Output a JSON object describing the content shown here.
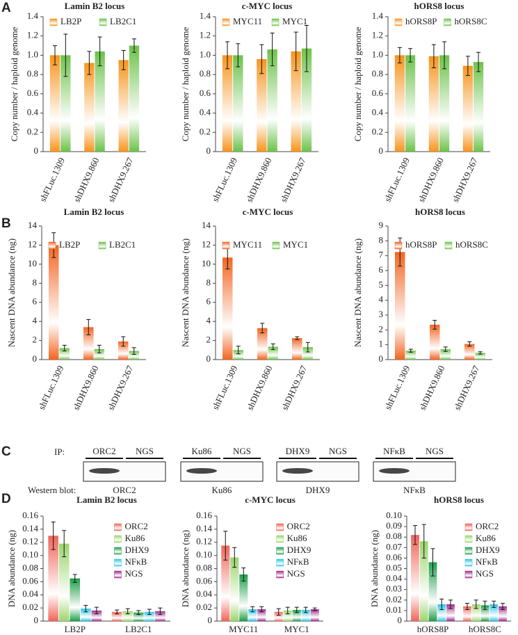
{
  "panel_labels": [
    "A",
    "B",
    "C",
    "D"
  ],
  "chart_data": [
    {
      "type": "bar",
      "title": "Lamin B2 locus",
      "y_label": "Copy number / haploid genome",
      "categories": [
        "shFLuc.1309",
        "shDHX9.860",
        "shDHX9.267"
      ],
      "series": [
        {
          "name": "LB2P",
          "color": "#f7941d",
          "values": [
            1.0,
            0.92,
            0.95
          ],
          "errors": [
            0.1,
            0.12,
            0.1
          ]
        },
        {
          "name": "LB2C1",
          "color": "#6cc24a",
          "values": [
            1.0,
            1.04,
            1.1
          ],
          "errors": [
            0.22,
            0.15,
            0.07
          ]
        }
      ],
      "ylim": [
        0,
        1.4
      ],
      "yticks": [
        0,
        0.2,
        0.4,
        0.6,
        0.8,
        {
          "value": 1,
          "label": "1.0"
        },
        1.2,
        1.4
      ],
      "legend": "top"
    },
    {
      "type": "bar",
      "title": "c-MYC locus",
      "y_label": "Copy number / haploid genome",
      "categories": [
        "shFLuc.1309",
        "shDHX9.860",
        "shDHX9.267"
      ],
      "series": [
        {
          "name": "MYC11",
          "color": "#f7941d",
          "values": [
            1.0,
            0.96,
            1.04
          ],
          "errors": [
            0.14,
            0.15,
            0.2
          ]
        },
        {
          "name": "MYC1",
          "color": "#6cc24a",
          "values": [
            1.0,
            1.06,
            1.07
          ],
          "errors": [
            0.12,
            0.17,
            0.24
          ]
        }
      ],
      "ylim": [
        0,
        1.4
      ],
      "yticks": [
        0,
        0.2,
        0.4,
        0.6,
        0.8,
        {
          "value": 1,
          "label": "1.0"
        },
        1.2,
        1.4
      ],
      "legend": "top"
    },
    {
      "type": "bar",
      "title": "hORS8 locus",
      "y_label": "Copy number / haploid genome",
      "categories": [
        "shFLuc.1309",
        "shDHX9.860",
        "shDHX9.267"
      ],
      "series": [
        {
          "name": "hORS8P",
          "color": "#f7941d",
          "values": [
            1.0,
            0.99,
            0.89
          ],
          "errors": [
            0.08,
            0.12,
            0.1
          ]
        },
        {
          "name": "hORS8C",
          "color": "#6cc24a",
          "values": [
            1.0,
            1.0,
            0.93
          ],
          "errors": [
            0.07,
            0.14,
            0.1
          ]
        }
      ],
      "ylim": [
        0,
        1.4
      ],
      "yticks": [
        0,
        0.2,
        0.4,
        0.6,
        0.8,
        {
          "value": 1,
          "label": "1.0"
        },
        1.2,
        1.4
      ],
      "legend": "top"
    },
    {
      "type": "bar",
      "title": "Lamin B2 locus",
      "y_label": "Nascent DNA abundance (ng)",
      "categories": [
        "shFLuc.1309",
        "shDHX9.860",
        "shDHX9.267"
      ],
      "series": [
        {
          "name": "LB2P",
          "color": "#f26522",
          "values": [
            12,
            3.4,
            1.9
          ],
          "errors": [
            1.3,
            0.8,
            0.5
          ]
        },
        {
          "name": "LB2C1",
          "color": "#6cc24a",
          "values": [
            1.2,
            1.1,
            0.9
          ],
          "errors": [
            0.3,
            0.4,
            0.35
          ]
        }
      ],
      "ylim": [
        0,
        14
      ],
      "yticks": [
        0,
        2,
        4,
        6,
        8,
        10,
        12,
        14
      ],
      "legend": "top"
    },
    {
      "type": "bar",
      "title": "c-MYC locus",
      "y_label": "Nascent DNA abundance (ng)",
      "categories": [
        "shFLuc.1309",
        "shDHX9.860",
        "shDHX9.267"
      ],
      "series": [
        {
          "name": "MYC11",
          "color": "#f26522",
          "values": [
            10.7,
            3.3,
            2.25
          ],
          "errors": [
            1.2,
            0.5,
            0.15
          ]
        },
        {
          "name": "MYC1",
          "color": "#6cc24a",
          "values": [
            1.0,
            1.35,
            1.3
          ],
          "errors": [
            0.4,
            0.3,
            0.5
          ]
        }
      ],
      "ylim": [
        0,
        14
      ],
      "yticks": [
        0,
        2,
        4,
        6,
        8,
        10,
        12,
        14
      ],
      "legend": "top"
    },
    {
      "type": "bar",
      "title": "hORS8 locus",
      "y_label": "Nascent DNA abundance (ng)",
      "categories": [
        "shFLuc.1309",
        "shDHX9.860",
        "shDHX9.267"
      ],
      "series": [
        {
          "name": "hORS8P",
          "color": "#f26522",
          "values": [
            7.25,
            2.35,
            1.05
          ],
          "errors": [
            0.95,
            0.3,
            0.15
          ]
        },
        {
          "name": "hORS8C",
          "color": "#6cc24a",
          "values": [
            0.6,
            0.7,
            0.45
          ],
          "errors": [
            0.1,
            0.15,
            0.08
          ]
        }
      ],
      "ylim": [
        0,
        9
      ],
      "yticks": [
        0,
        1,
        2,
        3,
        4,
        5,
        6,
        7,
        8,
        9
      ],
      "legend": "top"
    },
    {
      "type": "bar",
      "title": "Lamin B2 locus",
      "y_label": "DNA abundance (ng)",
      "categories": [
        "LB2P",
        "LB2C1"
      ],
      "series": [
        {
          "name": "ORC2",
          "color": "#f0645a",
          "values": [
            0.13,
            0.014
          ],
          "errors": [
            0.021,
            0.003
          ]
        },
        {
          "name": "Ku86",
          "color": "#9bd46b",
          "values": [
            0.118,
            0.015
          ],
          "errors": [
            0.02,
            0.004
          ]
        },
        {
          "name": "DHX9",
          "color": "#1e9e4a",
          "values": [
            0.065,
            0.013
          ],
          "errors": [
            0.006,
            0.003
          ]
        },
        {
          "name": "NFκB",
          "color": "#29c5e6",
          "values": [
            0.019,
            0.014
          ],
          "errors": [
            0.005,
            0.004
          ]
        },
        {
          "name": "NGS",
          "color": "#a0288c",
          "values": [
            0.016,
            0.015
          ],
          "errors": [
            0.005,
            0.005
          ]
        }
      ],
      "ylim": [
        0,
        0.16
      ],
      "yticks": [
        0,
        0.02,
        0.04,
        0.06,
        0.08,
        {
          "value": 0.1,
          "label": "0.10"
        },
        0.12,
        0.14,
        0.16
      ],
      "legend": "right"
    },
    {
      "type": "bar",
      "title": "c-MYC locus",
      "y_label": "DNA abundance (ng)",
      "categories": [
        "MYC11",
        "MYC1"
      ],
      "series": [
        {
          "name": "ORC2",
          "color": "#f0645a",
          "values": [
            0.115,
            0.014
          ],
          "errors": [
            0.022,
            0.005
          ]
        },
        {
          "name": "Ku86",
          "color": "#9bd46b",
          "values": [
            0.097,
            0.016
          ],
          "errors": [
            0.015,
            0.005
          ]
        },
        {
          "name": "DHX9",
          "color": "#1e9e4a",
          "values": [
            0.071,
            0.017
          ],
          "errors": [
            0.01,
            0.004
          ]
        },
        {
          "name": "NFκB",
          "color": "#29c5e6",
          "values": [
            0.018,
            0.017
          ],
          "errors": [
            0.004,
            0.004
          ]
        },
        {
          "name": "NGS",
          "color": "#a0288c",
          "values": [
            0.018,
            0.018
          ],
          "errors": [
            0.004,
            0.002
          ]
        }
      ],
      "ylim": [
        0,
        0.16
      ],
      "yticks": [
        0,
        0.02,
        0.04,
        0.06,
        0.08,
        {
          "value": 0.1,
          "label": "0.10"
        },
        0.12,
        0.14,
        0.16
      ],
      "legend": "right"
    },
    {
      "type": "bar",
      "title": "hORS8 locus",
      "y_label": "DNA abundance (ng)",
      "categories": [
        "hORS8P",
        "hORS8C"
      ],
      "series": [
        {
          "name": "ORC2",
          "color": "#f0645a",
          "values": [
            0.082,
            0.014
          ],
          "errors": [
            0.009,
            0.003
          ]
        },
        {
          "name": "Ku86",
          "color": "#9bd46b",
          "values": [
            0.076,
            0.016
          ],
          "errors": [
            0.016,
            0.004
          ]
        },
        {
          "name": "DHX9",
          "color": "#1e9e4a",
          "values": [
            0.056,
            0.015
          ],
          "errors": [
            0.013,
            0.004
          ]
        },
        {
          "name": "NFκB",
          "color": "#29c5e6",
          "values": [
            0.016,
            0.016
          ],
          "errors": [
            0.005,
            0.003
          ]
        },
        {
          "name": "NGS",
          "color": "#a0288c",
          "values": [
            0.016,
            0.014
          ],
          "errors": [
            0.004,
            0.003
          ]
        }
      ],
      "ylim": [
        0,
        0.1
      ],
      "yticks": [
        0,
        0.01,
        0.02,
        0.03,
        0.04,
        0.05,
        0.06,
        0.07,
        0.08,
        0.09,
        {
          "value": 0.1,
          "label": "0.10"
        }
      ],
      "legend": "right"
    }
  ],
  "western_blot": {
    "ip_label": "IP:",
    "blot_label": "Western blot:",
    "blots": [
      {
        "ip_lanes": [
          "ORC2",
          "NGS"
        ],
        "antibody": "ORC2"
      },
      {
        "ip_lanes": [
          "Ku86",
          "NGS"
        ],
        "antibody": "Ku86"
      },
      {
        "ip_lanes": [
          "DHX9",
          "NGS"
        ],
        "antibody": "DHX9"
      },
      {
        "ip_lanes": [
          "NFκB",
          "NGS"
        ],
        "antibody": "NFκB"
      }
    ]
  }
}
